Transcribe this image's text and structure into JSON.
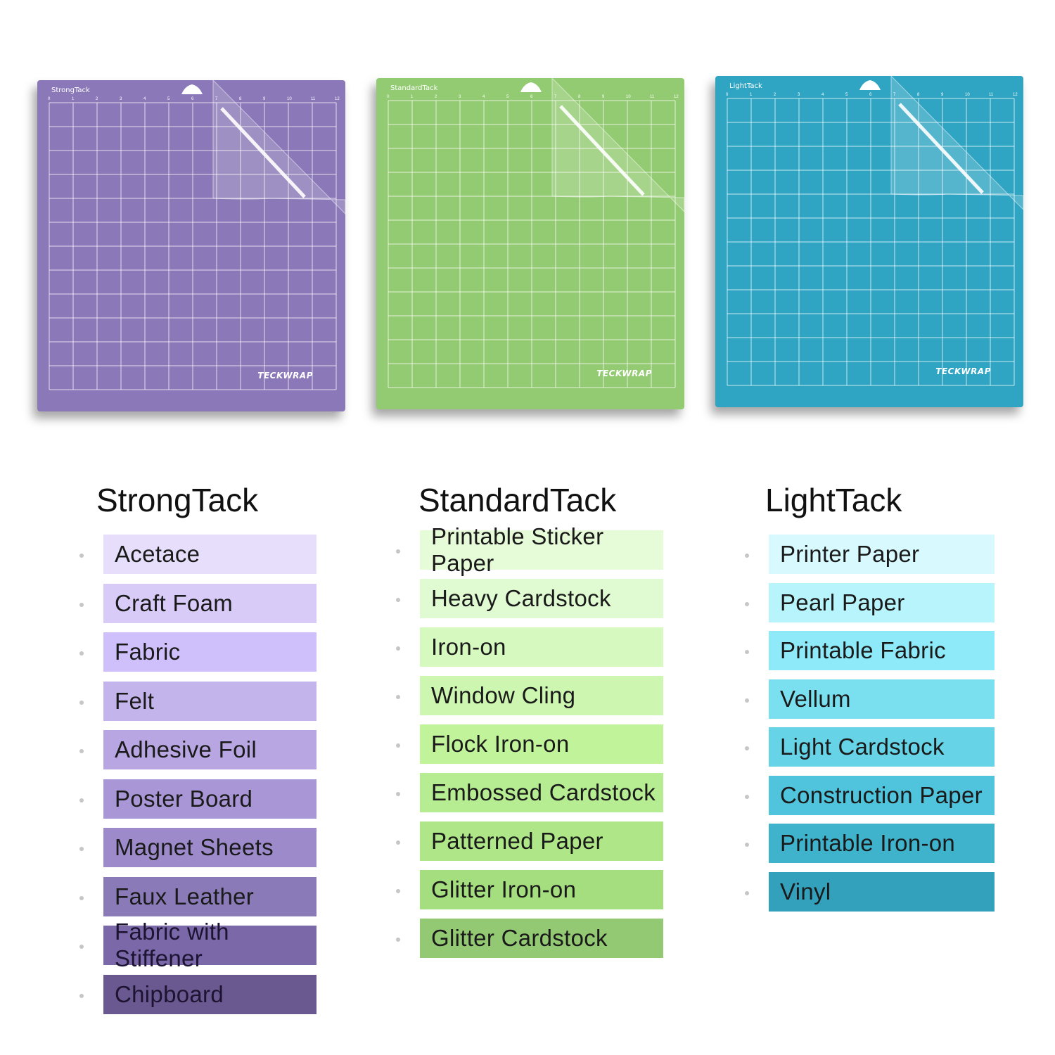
{
  "mats": [
    {
      "label": "StrongTack",
      "logo": "TECKWRAP",
      "color": "#8a78b8"
    },
    {
      "label": "StandardTack",
      "logo": "TECKWRAP",
      "color": "#93cb72"
    },
    {
      "label": "LightTack",
      "logo": "TECKWRAP",
      "color": "#2fa5c3"
    }
  ],
  "ruler_numbers": [
    "0",
    "1",
    "2",
    "3",
    "4",
    "5",
    "6",
    "7",
    "8",
    "9",
    "10",
    "11",
    "12"
  ],
  "columns": [
    {
      "title": "StrongTack",
      "items": [
        {
          "label": "Acetace",
          "color": "#e6defb"
        },
        {
          "label": "Craft Foam",
          "color": "#d8cbf7"
        },
        {
          "label": "Fabric",
          "color": "#cfc0fb"
        },
        {
          "label": "Felt",
          "color": "#c4b4ec"
        },
        {
          "label": "Adhesive Foil",
          "color": "#b8a6e2"
        },
        {
          "label": "Poster Board",
          "color": "#a996d6"
        },
        {
          "label": "Magnet Sheets",
          "color": "#9c8aca"
        },
        {
          "label": "Faux Leather",
          "color": "#8a7bb8"
        },
        {
          "label": "Fabric with Stiffener",
          "color": "#7a68a8"
        },
        {
          "label": "Chipboard",
          "color": "#6a5890"
        }
      ]
    },
    {
      "title": "StandardTack",
      "items": [
        {
          "label": "Printable Sticker Paper",
          "color": "#e6fbd8"
        },
        {
          "label": "Heavy Cardstock",
          "color": "#e0fbd2"
        },
        {
          "label": "Iron-on",
          "color": "#d6f9c0"
        },
        {
          "label": "Window Cling",
          "color": "#cdf7b0"
        },
        {
          "label": "Flock Iron-on",
          "color": "#c1f39a"
        },
        {
          "label": "Embossed Cardstock",
          "color": "#b6ed92"
        },
        {
          "label": "Patterned Paper",
          "color": "#aee688"
        },
        {
          "label": "Glitter Iron-on",
          "color": "#a5de7e"
        },
        {
          "label": "Glitter Cardstock",
          "color": "#94c974"
        }
      ]
    },
    {
      "title": "LightTack",
      "items": [
        {
          "label": "Printer Paper",
          "color": "#d8fafe"
        },
        {
          "label": "Pearl Paper",
          "color": "#b8f4fc"
        },
        {
          "label": "Printable Fabric",
          "color": "#8eeaf8"
        },
        {
          "label": "Vellum",
          "color": "#7ae0f0"
        },
        {
          "label": "Light Cardstock",
          "color": "#66d4e6"
        },
        {
          "label": "Construction Paper",
          "color": "#4fc4dc"
        },
        {
          "label": "Printable Iron-on",
          "color": "#3fb2cc"
        },
        {
          "label": "Vinyl",
          "color": "#33a0bc"
        }
      ]
    }
  ]
}
